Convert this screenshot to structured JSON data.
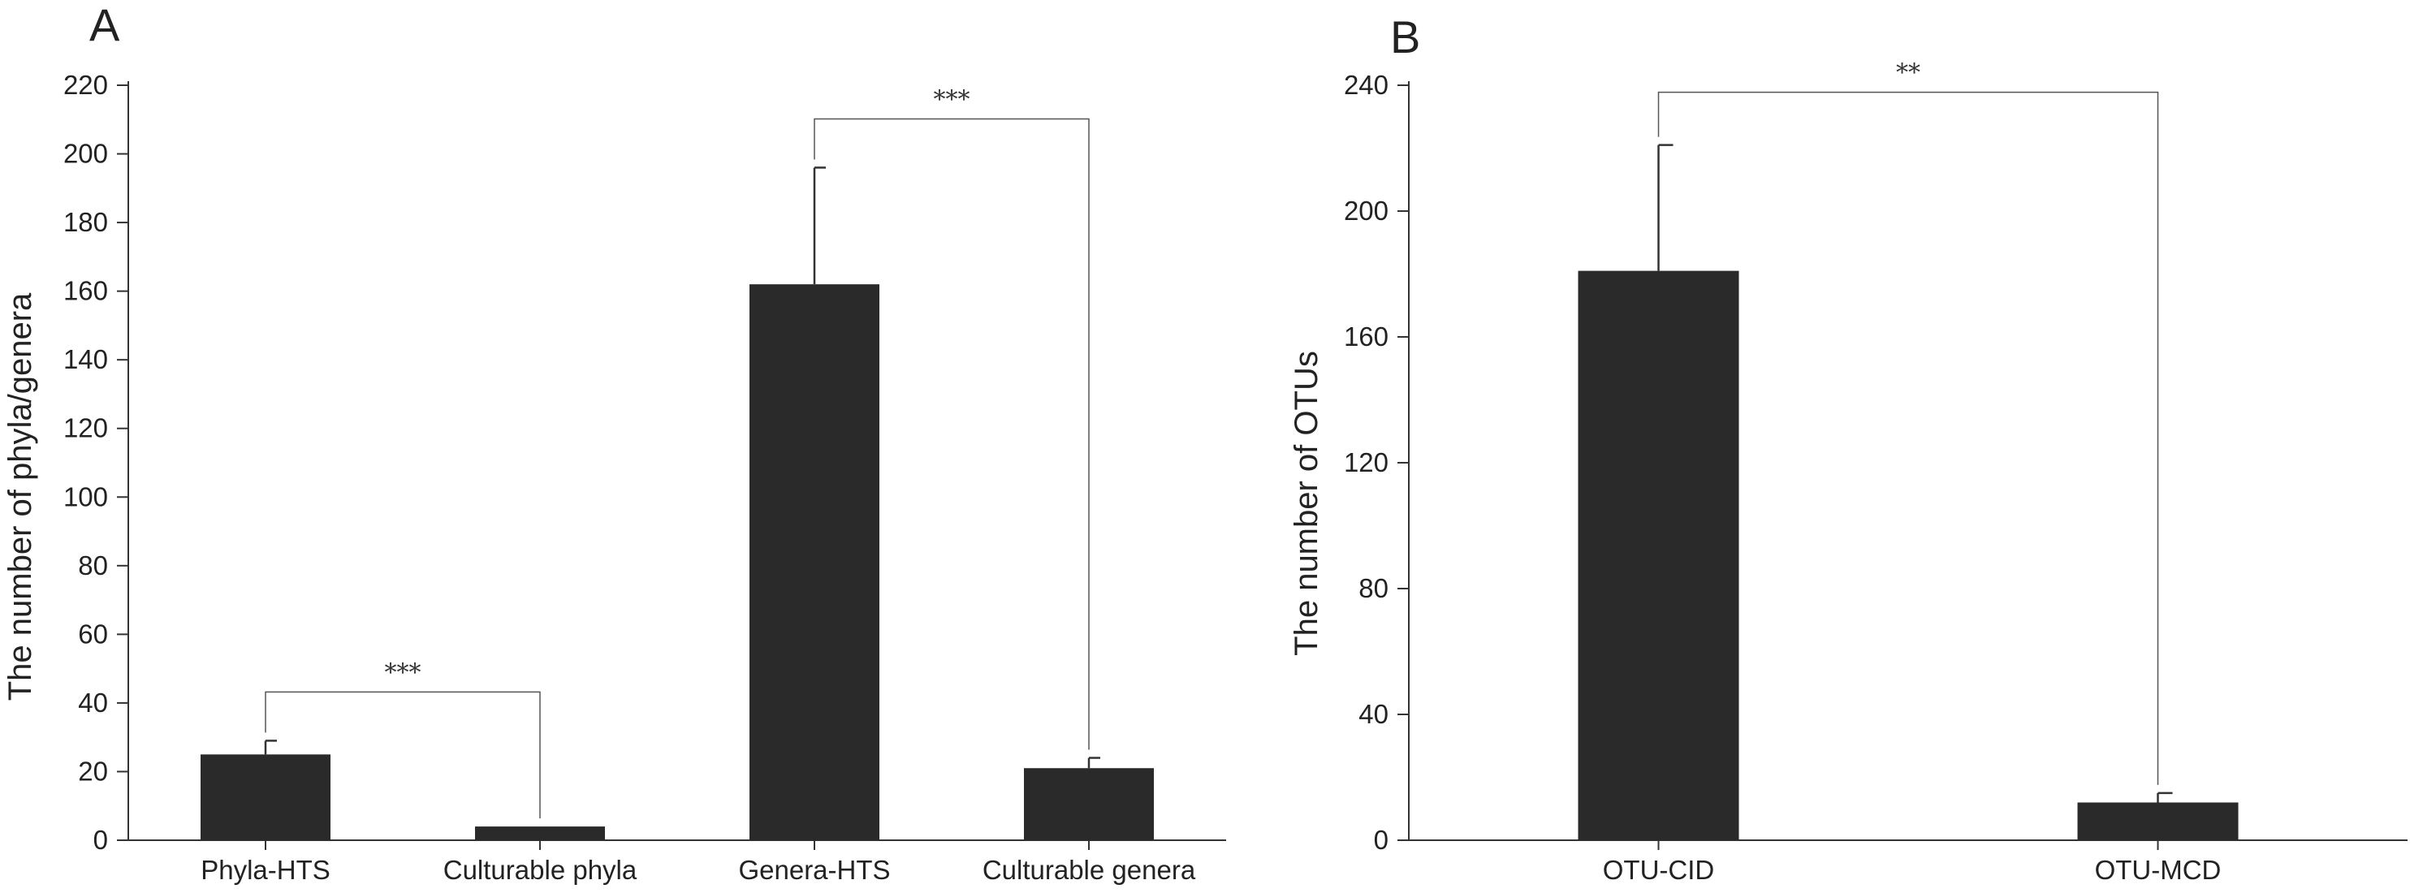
{
  "chart_data": [
    {
      "panel": "A",
      "type": "bar",
      "categories": [
        "Phyla-HTS",
        "Culturable phyla",
        "Genera-HTS",
        "Culturable genera"
      ],
      "values": [
        25,
        4,
        162,
        21
      ],
      "errors": [
        4,
        0,
        34,
        3
      ],
      "ylabel": "The number of phyla/genera",
      "xlabel": "",
      "ylim": [
        0,
        220
      ],
      "yticks": [
        "0",
        "20",
        "40",
        "60",
        "80",
        "100",
        "120",
        "140",
        "160",
        "180",
        "200",
        "220"
      ],
      "significance": [
        {
          "from": 0,
          "to": 1,
          "label": "***"
        },
        {
          "from": 2,
          "to": 3,
          "label": "***"
        }
      ],
      "bar_color": "#2a2a2a"
    },
    {
      "panel": "B",
      "type": "bar",
      "categories": [
        "OTU-CID",
        "OTU-MCD"
      ],
      "values": [
        181,
        12
      ],
      "errors": [
        40,
        3
      ],
      "ylabel": "The number of OTUs",
      "xlabel": "",
      "ylim": [
        0,
        240
      ],
      "yticks": [
        "0",
        "40",
        "80",
        "120",
        "160",
        "200",
        "240"
      ],
      "significance": [
        {
          "from": 0,
          "to": 1,
          "label": "**"
        }
      ],
      "bar_color": "#2a2a2a"
    }
  ]
}
